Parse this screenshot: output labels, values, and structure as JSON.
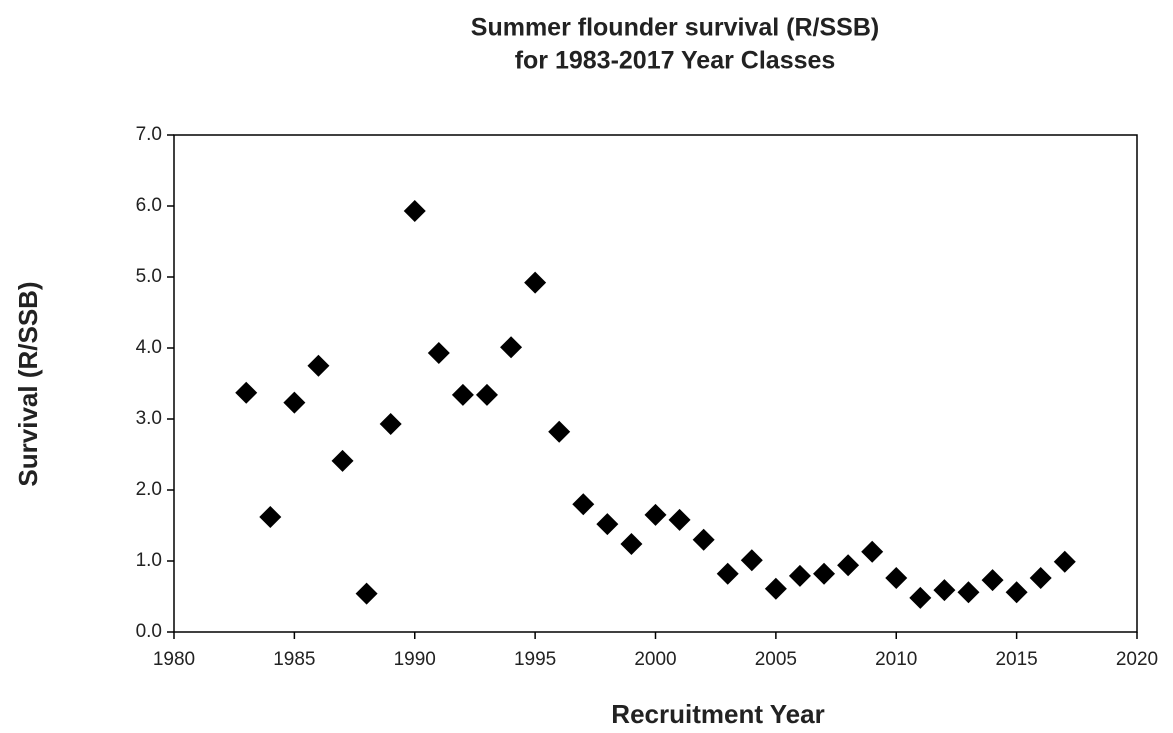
{
  "chart_data": {
    "type": "scatter",
    "title": [
      "Summer flounder survival (R/SSB)",
      "for 1983-2017 Year Classes"
    ],
    "x_label": "Recruitment Year",
    "y_label": "Survival (R/SSB)",
    "color": "#000000",
    "marker": "diamond",
    "x": [
      1983,
      1984,
      1985,
      1986,
      1987,
      1988,
      1989,
      1990,
      1991,
      1992,
      1993,
      1994,
      1995,
      1996,
      1997,
      1998,
      1999,
      2000,
      2001,
      2002,
      2003,
      2004,
      2005,
      2006,
      2007,
      2008,
      2009,
      2010,
      2011,
      2012,
      2013,
      2014,
      2015,
      2016,
      2017
    ],
    "values": [
      3.37,
      1.62,
      3.23,
      3.75,
      2.41,
      0.54,
      2.93,
      5.93,
      3.93,
      3.34,
      3.34,
      4.01,
      4.92,
      2.82,
      1.8,
      1.52,
      1.24,
      1.65,
      1.58,
      1.3,
      0.82,
      1.01,
      0.61,
      0.79,
      0.82,
      0.94,
      1.13,
      0.76,
      0.48,
      0.59,
      0.56,
      0.73,
      0.56,
      0.76,
      0.99
    ],
    "xlim": [
      1980,
      2020
    ],
    "xticks": [
      1980,
      1985,
      1990,
      1995,
      2000,
      2005,
      2010,
      2015,
      2020
    ],
    "ylim": [
      0,
      7
    ],
    "yticks": [
      {
        "value": 0,
        "label": "0.0"
      },
      {
        "value": 1,
        "label": "1.0"
      },
      {
        "value": 2,
        "label": "2.0"
      },
      {
        "value": 3,
        "label": "3.0"
      },
      {
        "value": 4,
        "label": "4.0"
      },
      {
        "value": 5,
        "label": "5.0"
      },
      {
        "value": 6,
        "label": "6.0"
      },
      {
        "value": 7,
        "label": "7.0"
      }
    ],
    "grid": false
  }
}
